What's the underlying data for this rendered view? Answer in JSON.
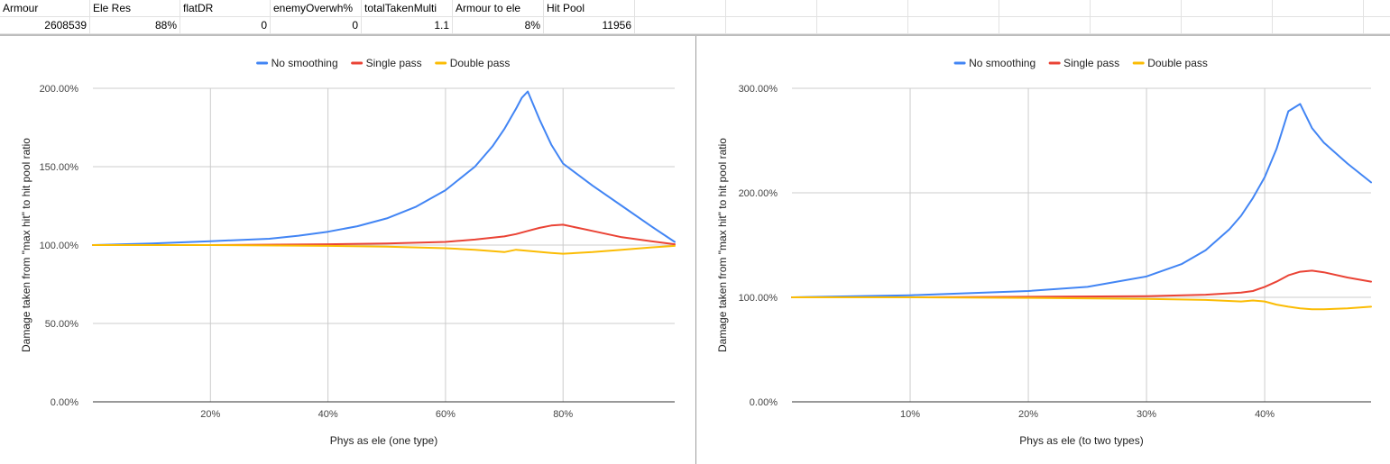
{
  "sheet": {
    "headers": [
      "Armour",
      "Ele Res",
      "flatDR",
      "enemyOverwh%",
      "totalTakenMulti",
      "Armour to ele",
      "Hit Pool"
    ],
    "values": [
      "2608539",
      "88%",
      "0",
      "0",
      "1.1",
      "8%",
      "11956"
    ]
  },
  "chart_data": [
    {
      "type": "line",
      "title": "",
      "xlabel": "Phys as ele (one type)",
      "ylabel": "Damage taken from \"max hit\" to hit pool ratio",
      "xlim": [
        0.0,
        0.99
      ],
      "ylim": [
        0,
        2.0
      ],
      "x_ticks": [
        0.2,
        0.4,
        0.6,
        0.8
      ],
      "x_tick_labels": [
        "20%",
        "40%",
        "60%",
        "80%"
      ],
      "y_ticks": [
        0,
        0.5,
        1.0,
        1.5,
        2.0
      ],
      "y_tick_labels": [
        "0.00%",
        "50.00%",
        "100.00%",
        "150.00%",
        "200.00%"
      ],
      "grid": true,
      "legend": "top",
      "series": [
        {
          "name": "No smoothing",
          "color": "#4285f4",
          "x": [
            0.0,
            0.1,
            0.2,
            0.3,
            0.35,
            0.4,
            0.45,
            0.5,
            0.55,
            0.6,
            0.65,
            0.68,
            0.7,
            0.72,
            0.73,
            0.74,
            0.76,
            0.78,
            0.8,
            0.85,
            0.9,
            0.95,
            0.99
          ],
          "y": [
            1.0,
            1.01,
            1.025,
            1.04,
            1.06,
            1.085,
            1.12,
            1.17,
            1.245,
            1.35,
            1.5,
            1.63,
            1.74,
            1.87,
            1.94,
            1.98,
            1.8,
            1.64,
            1.52,
            1.38,
            1.25,
            1.12,
            1.02
          ]
        },
        {
          "name": "Single pass",
          "color": "#ea4335",
          "x": [
            0.0,
            0.2,
            0.4,
            0.5,
            0.6,
            0.65,
            0.7,
            0.72,
            0.74,
            0.76,
            0.78,
            0.8,
            0.85,
            0.9,
            0.95,
            0.99
          ],
          "y": [
            1.0,
            1.0,
            1.005,
            1.01,
            1.02,
            1.035,
            1.055,
            1.07,
            1.09,
            1.11,
            1.125,
            1.13,
            1.09,
            1.05,
            1.025,
            1.005
          ]
        },
        {
          "name": "Double pass",
          "color": "#fbbc04",
          "x": [
            0.0,
            0.2,
            0.4,
            0.5,
            0.6,
            0.65,
            0.7,
            0.72,
            0.75,
            0.78,
            0.8,
            0.85,
            0.9,
            0.95,
            0.99
          ],
          "y": [
            1.0,
            1.0,
            0.995,
            0.99,
            0.98,
            0.97,
            0.955,
            0.97,
            0.96,
            0.95,
            0.945,
            0.955,
            0.97,
            0.985,
            0.995
          ]
        }
      ]
    },
    {
      "type": "line",
      "title": "",
      "xlabel": "Phys as ele (to two types)",
      "ylabel": "Damage taken from \"max hit\" to hit pool ratio",
      "xlim": [
        0.0,
        0.49
      ],
      "ylim": [
        0,
        3.0
      ],
      "x_ticks": [
        0.1,
        0.2,
        0.3,
        0.4
      ],
      "x_tick_labels": [
        "10%",
        "20%",
        "30%",
        "40%"
      ],
      "y_ticks": [
        0,
        1.0,
        2.0,
        3.0
      ],
      "y_tick_labels": [
        "0.00%",
        "100.00%",
        "200.00%",
        "300.00%"
      ],
      "grid": true,
      "legend": "top",
      "series": [
        {
          "name": "No smoothing",
          "color": "#4285f4",
          "x": [
            0.0,
            0.1,
            0.2,
            0.25,
            0.3,
            0.33,
            0.35,
            0.37,
            0.38,
            0.39,
            0.4,
            0.41,
            0.42,
            0.43,
            0.44,
            0.45,
            0.47,
            0.49
          ],
          "y": [
            1.0,
            1.02,
            1.06,
            1.1,
            1.2,
            1.32,
            1.45,
            1.65,
            1.78,
            1.95,
            2.15,
            2.42,
            2.78,
            2.85,
            2.62,
            2.48,
            2.28,
            2.1
          ]
        },
        {
          "name": "Single pass",
          "color": "#ea4335",
          "x": [
            0.0,
            0.1,
            0.2,
            0.3,
            0.35,
            0.38,
            0.39,
            0.4,
            0.41,
            0.42,
            0.43,
            0.44,
            0.45,
            0.47,
            0.49
          ],
          "y": [
            1.0,
            1.0,
            1.005,
            1.01,
            1.025,
            1.045,
            1.06,
            1.1,
            1.15,
            1.21,
            1.245,
            1.255,
            1.24,
            1.19,
            1.15
          ]
        },
        {
          "name": "Double pass",
          "color": "#fbbc04",
          "x": [
            0.0,
            0.1,
            0.2,
            0.3,
            0.35,
            0.38,
            0.39,
            0.4,
            0.41,
            0.42,
            0.43,
            0.44,
            0.45,
            0.47,
            0.49
          ],
          "y": [
            1.0,
            1.0,
            0.995,
            0.985,
            0.975,
            0.96,
            0.97,
            0.96,
            0.93,
            0.91,
            0.895,
            0.885,
            0.885,
            0.895,
            0.91
          ]
        }
      ]
    }
  ]
}
